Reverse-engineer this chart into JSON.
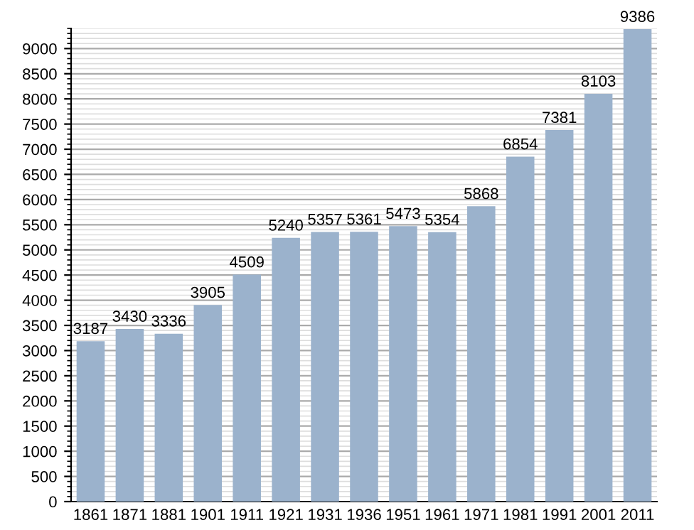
{
  "chart_data": {
    "type": "bar",
    "categories": [
      "1861",
      "1871",
      "1881",
      "1901",
      "1911",
      "1921",
      "1931",
      "1936",
      "1951",
      "1961",
      "1971",
      "1981",
      "1991",
      "2001",
      "2011"
    ],
    "values": [
      3187,
      3430,
      3336,
      3905,
      4509,
      5240,
      5357,
      5361,
      5473,
      5354,
      5868,
      6854,
      7381,
      8103,
      9386
    ],
    "color": "#9bb2cc",
    "ylim": [
      0,
      9400
    ],
    "yticks": [
      0,
      500,
      1000,
      1500,
      2000,
      2500,
      3000,
      3500,
      4000,
      4500,
      5000,
      5500,
      6000,
      6500,
      7000,
      7500,
      8000,
      8500,
      9000
    ],
    "grid": "y",
    "data_labels": true
  }
}
